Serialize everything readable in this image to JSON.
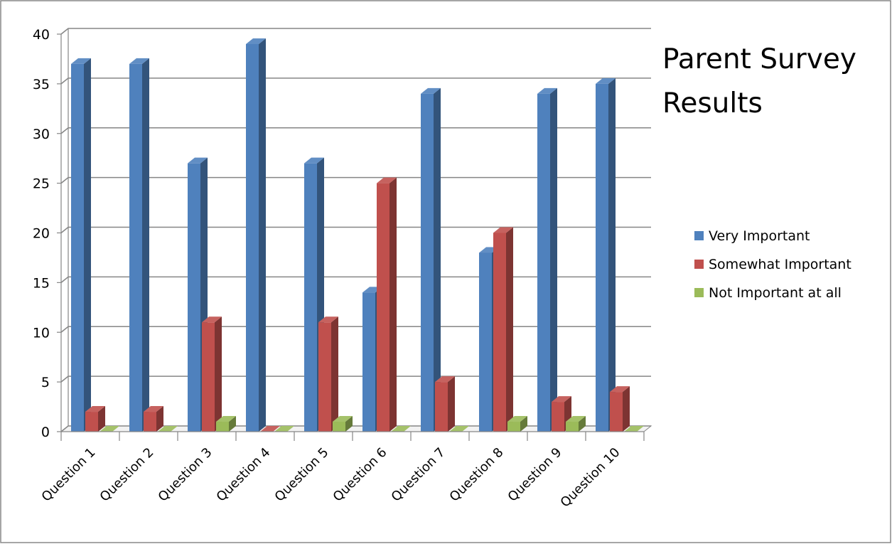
{
  "chart_data": {
    "type": "bar",
    "title": "Parent Survey Results",
    "categories": [
      "Question 1",
      "Question 2",
      "Question 3",
      "Question 4",
      "Question 5",
      "Question 6",
      "Question 7",
      "Question 8",
      "Question 9",
      "Question 10"
    ],
    "series": [
      {
        "name": "Very Important",
        "color": "#4F81BD",
        "values": [
          37,
          37,
          27,
          39,
          27,
          14,
          34,
          18,
          34,
          35
        ]
      },
      {
        "name": "Somewhat Important",
        "color": "#C0504D",
        "values": [
          2,
          2,
          11,
          0,
          11,
          25,
          5,
          20,
          3,
          4
        ]
      },
      {
        "name": "Not Important at all",
        "color": "#9BBB59",
        "values": [
          0,
          0,
          1,
          0,
          1,
          0,
          0,
          1,
          1,
          0
        ]
      }
    ],
    "xlabel": "",
    "ylabel": "",
    "ylim": [
      0,
      40
    ],
    "yticks": [
      0,
      5,
      10,
      15,
      20,
      25,
      30,
      35,
      40
    ],
    "grid": true,
    "legend": "right",
    "style": "3d-clustered-column"
  }
}
